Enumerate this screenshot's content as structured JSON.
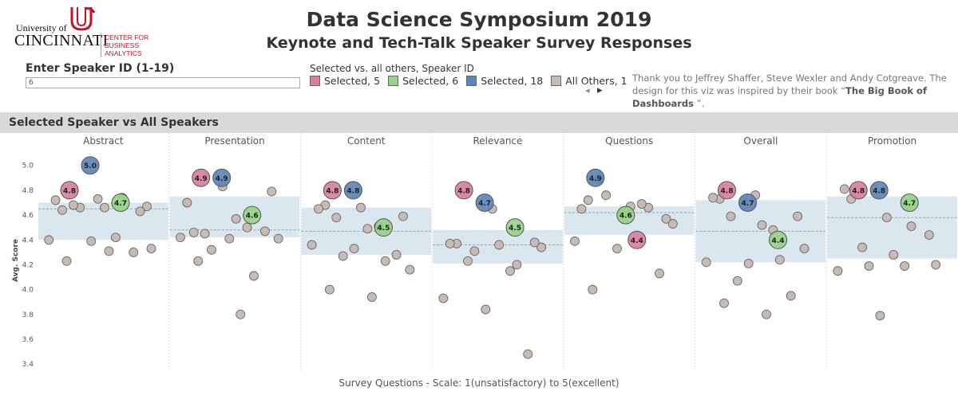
{
  "header": {
    "logo_line1": "University of",
    "logo_line2": "CINCINNATI",
    "logo_line3": "CENTER FOR",
    "logo_line4": "BUSINESS ANALYTICS",
    "title": "Data Science Symposium 2019",
    "subtitle": "Keynote and Tech-Talk Speaker Survey Responses"
  },
  "controls": {
    "speaker_label": "Enter Speaker ID (1-19)",
    "speaker_value": "6",
    "legend_title": "Selected vs. all others, Speaker ID",
    "legend": [
      {
        "label": "Selected, 5",
        "color": "#d97f9c"
      },
      {
        "label": "Selected, 6",
        "color": "#95d488"
      },
      {
        "label": "Selected, 18",
        "color": "#5d85b7"
      },
      {
        "label": "All Others, 1",
        "color": "#c7bbb7"
      }
    ],
    "pager_prev": "◂",
    "pager_next": "▸",
    "thanks_text": "Thank you to Jeffrey Shaffer, Steve Wexler and Andy Cotgreave.  The design for this viz was inspired by their book “",
    "thanks_book": "The Big Book of Dashboards",
    "thanks_end": " ”."
  },
  "section_title": "Selected Speaker vs All Speakers",
  "colors": {
    "speaker5": "#d97f9c",
    "speaker6": "#95d488",
    "speaker18": "#5d85b7",
    "others": "#c7bbb7",
    "band": "#dbe7ee"
  },
  "chart_data": {
    "type": "scatter",
    "ylabel": "Avg. Score",
    "xlabel": "Survey Questions  - Scale: 1(unsatisfactory) to 5(excellent)",
    "ylim": [
      3.35,
      5.12
    ],
    "yticks": [
      "5.0",
      "4.8",
      "4.6",
      "4.4",
      "4.2",
      "4.0",
      "3.8",
      "3.6",
      "3.4"
    ],
    "categories": [
      "Abstract",
      "Presentation",
      "Content",
      "Relevance",
      "Questions",
      "Overall",
      "Promotion"
    ],
    "bands": [
      [
        4.4,
        4.7
      ],
      [
        4.42,
        4.75
      ],
      [
        4.28,
        4.66
      ],
      [
        4.21,
        4.48
      ],
      [
        4.44,
        4.67
      ],
      [
        4.22,
        4.72
      ],
      [
        4.25,
        4.75
      ]
    ],
    "means": [
      4.65,
      4.48,
      4.47,
      4.36,
      4.62,
      4.47,
      4.58
    ],
    "selected": [
      {
        "question": "Abstract",
        "speaker": 5,
        "value": 4.8,
        "label": "4.8"
      },
      {
        "question": "Abstract",
        "speaker": 18,
        "value": 5.0,
        "label": "5.0"
      },
      {
        "question": "Abstract",
        "speaker": 6,
        "value": 4.7,
        "label": "4.7"
      },
      {
        "question": "Presentation",
        "speaker": 5,
        "value": 4.9,
        "label": "4.9"
      },
      {
        "question": "Presentation",
        "speaker": 18,
        "value": 4.9,
        "label": "4.9"
      },
      {
        "question": "Presentation",
        "speaker": 6,
        "value": 4.6,
        "label": "4.6"
      },
      {
        "question": "Content",
        "speaker": 5,
        "value": 4.8,
        "label": "4.8"
      },
      {
        "question": "Content",
        "speaker": 18,
        "value": 4.8,
        "label": "4.8"
      },
      {
        "question": "Content",
        "speaker": 6,
        "value": 4.5,
        "label": "4.5"
      },
      {
        "question": "Relevance",
        "speaker": 5,
        "value": 4.8,
        "label": "4.8"
      },
      {
        "question": "Relevance",
        "speaker": 18,
        "value": 4.7,
        "label": "4.7"
      },
      {
        "question": "Relevance",
        "speaker": 6,
        "value": 4.5,
        "label": "4.5"
      },
      {
        "question": "Questions",
        "speaker": 18,
        "value": 4.9,
        "label": "4.9"
      },
      {
        "question": "Questions",
        "speaker": 6,
        "value": 4.6,
        "label": "4.6"
      },
      {
        "question": "Questions",
        "speaker": 5,
        "value": 4.4,
        "label": "4.4"
      },
      {
        "question": "Overall",
        "speaker": 5,
        "value": 4.8,
        "label": "4.8"
      },
      {
        "question": "Overall",
        "speaker": 18,
        "value": 4.7,
        "label": "4.7"
      },
      {
        "question": "Overall",
        "speaker": 6,
        "value": 4.4,
        "label": "4.4"
      },
      {
        "question": "Promotion",
        "speaker": 5,
        "value": 4.8,
        "label": "4.8"
      },
      {
        "question": "Promotion",
        "speaker": 18,
        "value": 4.8,
        "label": "4.8"
      },
      {
        "question": "Promotion",
        "speaker": 6,
        "value": 4.7,
        "label": "4.7"
      }
    ],
    "others": [
      [
        4.64,
        4.66,
        4.67,
        4.66,
        4.74,
        4.72,
        4.73,
        4.63,
        4.68,
        4.42,
        4.4,
        4.39,
        4.3,
        4.23,
        4.31,
        4.33
      ],
      [
        4.46,
        4.57,
        4.41,
        4.32,
        4.11,
        4.7,
        4.41,
        4.79,
        4.45,
        4.5,
        4.42,
        4.83,
        4.47,
        4.23,
        3.8
      ],
      [
        4.68,
        4.49,
        4.16,
        4.27,
        4.23,
        4.65,
        4.66,
        4.59,
        4.58,
        4.51,
        4.36,
        4.33,
        4.28,
        4.0,
        3.94
      ],
      [
        4.37,
        4.36,
        4.34,
        4.31,
        4.2,
        4.37,
        4.65,
        4.38,
        4.23,
        4.15,
        3.93,
        3.84,
        3.48
      ],
      [
        4.72,
        4.67,
        4.53,
        4.76,
        4.66,
        4.65,
        4.63,
        4.57,
        4.89,
        4.69,
        4.39,
        4.33,
        4.13,
        4.0
      ],
      [
        4.73,
        4.52,
        4.33,
        4.07,
        4.24,
        4.74,
        4.76,
        4.59,
        4.59,
        4.48,
        4.22,
        4.21,
        3.95,
        3.89,
        3.8
      ],
      [
        4.73,
        4.28,
        4.2,
        4.19,
        4.51,
        4.81,
        4.58,
        4.44,
        4.34,
        4.19,
        4.15,
        3.79
      ]
    ]
  }
}
